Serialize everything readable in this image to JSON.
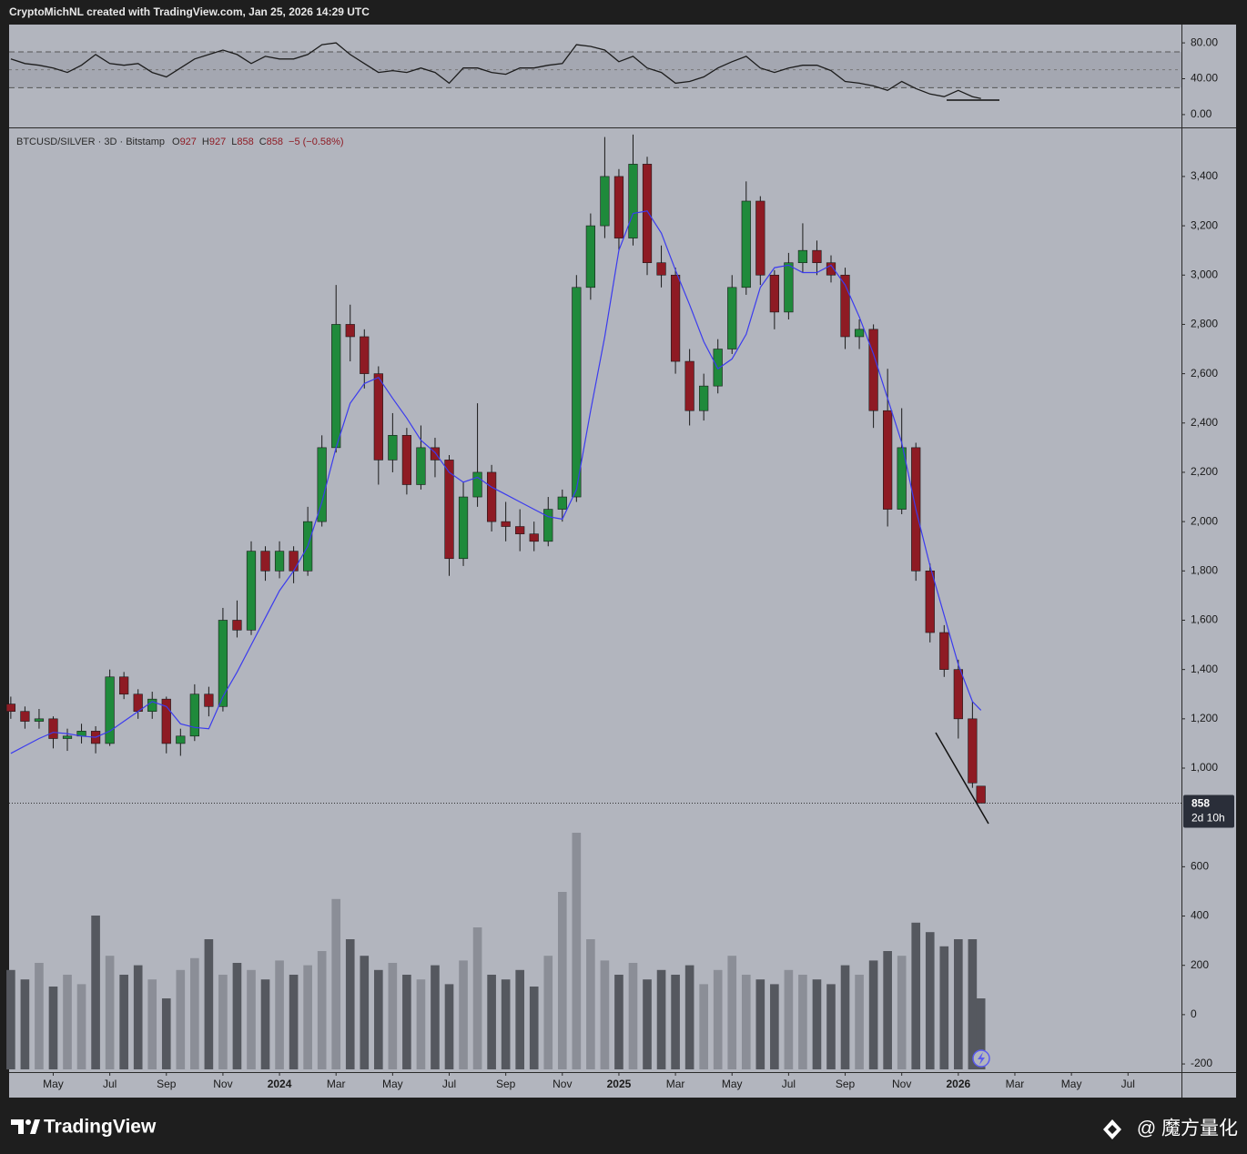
{
  "header": {
    "attribution": "CryptoMichNL created with TradingView.com, Jan 25, 2026 14:29 UTC"
  },
  "footer": {
    "brand": "TradingView",
    "watermark": "@ 魔方量化"
  },
  "chart_data": [
    {
      "type": "line",
      "x": [
        2.5,
        3,
        3.5,
        4,
        4.5,
        5,
        5.5,
        6,
        6.5,
        7,
        7.5,
        8,
        8.5,
        9,
        9.5,
        10,
        10.5,
        11,
        11.5,
        12,
        12.5,
        13,
        13.5,
        14,
        14.5,
        15,
        15.5,
        16,
        16.5,
        17,
        17.5,
        18,
        18.5,
        19,
        19.5,
        20,
        20.5,
        21,
        21.5,
        22,
        22.5,
        23,
        23.5,
        24,
        24.5,
        25,
        25.5,
        26,
        26.5,
        27,
        27.5,
        28,
        28.5,
        29,
        29.5,
        30,
        30.5,
        31,
        31.5,
        32,
        32.5,
        33,
        33.5,
        34,
        34.5,
        35,
        35.5,
        36,
        36.5,
        36.8
      ],
      "values": [
        62,
        57,
        55,
        52,
        47,
        55,
        67,
        57,
        55,
        57,
        47,
        42,
        52,
        62,
        67,
        72,
        67,
        57,
        65,
        62,
        62,
        67,
        78,
        80,
        67,
        57,
        47,
        49,
        47,
        52,
        47,
        35,
        52,
        52,
        47,
        45,
        52,
        52,
        55,
        57,
        78,
        76,
        72,
        59,
        65,
        52,
        47,
        35,
        37,
        42,
        52,
        59,
        65,
        52,
        47,
        52,
        55,
        55,
        49,
        37,
        35,
        32,
        27,
        37,
        29,
        23,
        20,
        27,
        20,
        18
      ],
      "color": "#1c1c1c",
      "xlim": [
        2.44,
        43.89
      ],
      "ylim": [
        -14.3,
        100.4
      ],
      "yticks": [
        {
          "value": 80,
          "label": "80.00"
        },
        {
          "value": 40,
          "label": "40.00"
        },
        {
          "value": 0,
          "label": "0.00"
        }
      ],
      "band": [
        30,
        70
      ],
      "midline": 50,
      "band_color": "#a4a7b1",
      "grid": false
    },
    {
      "type": "candlestick",
      "legend": {
        "symbol": "BTCUSD/SILVER · 3D · Bitstamp",
        "ohlc_letters": [
          "O",
          "H",
          "L",
          "C"
        ],
        "change": "−5 (−0.58%)"
      },
      "x": [
        2.5,
        3,
        3.5,
        4,
        4.5,
        5,
        5.5,
        6,
        6.5,
        7,
        7.5,
        8,
        8.5,
        9,
        9.5,
        10,
        10.5,
        11,
        11.5,
        12,
        12.5,
        13,
        13.5,
        14,
        14.5,
        15,
        15.5,
        16,
        16.5,
        17,
        17.5,
        18,
        18.5,
        19,
        19.5,
        20,
        20.5,
        21,
        21.5,
        22,
        22.5,
        23,
        23.5,
        24,
        24.5,
        25,
        25.5,
        26,
        26.5,
        27,
        27.5,
        28,
        28.5,
        29,
        29.5,
        30,
        30.5,
        31,
        31.5,
        32,
        32.5,
        33,
        33.5,
        34,
        34.5,
        35,
        35.5,
        36,
        36.5,
        36.8
      ],
      "open": [
        1260,
        1230,
        1190,
        1200,
        1120,
        1130,
        1150,
        1100,
        1370,
        1300,
        1230,
        1280,
        1100,
        1130,
        1300,
        1250,
        1600,
        1560,
        1880,
        1800,
        1880,
        1800,
        2000,
        2300,
        2800,
        2750,
        2600,
        2250,
        2350,
        2150,
        2300,
        2250,
        1850,
        2100,
        2200,
        2000,
        1980,
        1950,
        1920,
        2050,
        2100,
        2950,
        3200,
        3400,
        3150,
        3450,
        3050,
        3000,
        2650,
        2450,
        2550,
        2700,
        2950,
        3300,
        3000,
        2850,
        3050,
        3100,
        3050,
        3000,
        2750,
        2780,
        2450,
        2050,
        2300,
        1800,
        1550,
        1400,
        1200,
        927
      ],
      "high": [
        1290,
        1250,
        1240,
        1210,
        1160,
        1180,
        1170,
        1400,
        1390,
        1320,
        1310,
        1290,
        1160,
        1340,
        1330,
        1650,
        1680,
        1920,
        1900,
        1920,
        1900,
        2060,
        2350,
        2960,
        2880,
        2780,
        2630,
        2440,
        2380,
        2390,
        2340,
        2270,
        2160,
        2480,
        2230,
        2080,
        2050,
        2000,
        2100,
        2130,
        3000,
        3250,
        3560,
        3430,
        3570,
        3480,
        3120,
        3030,
        2700,
        2600,
        2740,
        3000,
        3380,
        3320,
        3020,
        3090,
        3210,
        3140,
        3080,
        3030,
        2820,
        2800,
        2620,
        2460,
        2320,
        1830,
        1580,
        1440,
        1270,
        927
      ],
      "low": [
        1200,
        1160,
        1160,
        1080,
        1070,
        1100,
        1060,
        1090,
        1280,
        1200,
        1200,
        1060,
        1050,
        1110,
        1210,
        1230,
        1530,
        1540,
        1760,
        1770,
        1750,
        1780,
        1980,
        2280,
        2650,
        2540,
        2150,
        2200,
        2110,
        2130,
        2180,
        1780,
        1820,
        2060,
        1960,
        1920,
        1880,
        1880,
        1900,
        2000,
        2080,
        2900,
        3150,
        3100,
        3120,
        3000,
        2950,
        2600,
        2390,
        2410,
        2520,
        2680,
        2920,
        2960,
        2780,
        2820,
        3010,
        3000,
        2970,
        2700,
        2700,
        2380,
        1980,
        2030,
        1760,
        1510,
        1370,
        1120,
        920,
        858
      ],
      "close": [
        1230,
        1190,
        1200,
        1120,
        1130,
        1150,
        1100,
        1370,
        1300,
        1230,
        1280,
        1100,
        1130,
        1300,
        1250,
        1600,
        1560,
        1880,
        1800,
        1880,
        1800,
        2000,
        2300,
        2800,
        2750,
        2600,
        2250,
        2350,
        2150,
        2300,
        2250,
        1850,
        2100,
        2200,
        2000,
        1980,
        1950,
        1920,
        2050,
        2100,
        2950,
        3200,
        3400,
        3150,
        3450,
        3050,
        3000,
        2650,
        2450,
        2550,
        2700,
        2950,
        3300,
        3000,
        2850,
        3050,
        3100,
        3050,
        3000,
        2750,
        2780,
        2450,
        2050,
        2300,
        1800,
        1550,
        1400,
        1200,
        940,
        858
      ],
      "up_color": "#1f8a3b",
      "down_color": "#8e1b24",
      "wick_color": "#1a1a1a",
      "ma": {
        "color": "#3b3bee",
        "values": [
          1060,
          1090,
          1120,
          1145,
          1140,
          1130,
          1125,
          1150,
          1190,
          1230,
          1270,
          1250,
          1180,
          1165,
          1160,
          1290,
          1390,
          1500,
          1610,
          1720,
          1800,
          1900,
          2080,
          2300,
          2480,
          2560,
          2585,
          2500,
          2420,
          2330,
          2280,
          2200,
          2160,
          2180,
          2140,
          2110,
          2080,
          2050,
          2020,
          2010,
          2130,
          2450,
          2750,
          3100,
          3250,
          3260,
          3170,
          3020,
          2880,
          2730,
          2620,
          2660,
          2760,
          2950,
          3030,
          3040,
          3010,
          3010,
          3040,
          2960,
          2830,
          2680,
          2500,
          2320,
          2050,
          1820,
          1620,
          1420,
          1270,
          1235
        ]
      },
      "volume": {
        "up_color": "#8b8e97",
        "down_color": "#55585f",
        "values": [
          42,
          38,
          45,
          35,
          40,
          36,
          65,
          48,
          40,
          44,
          38,
          30,
          42,
          47,
          55,
          40,
          45,
          42,
          38,
          46,
          40,
          44,
          50,
          72,
          55,
          48,
          42,
          45,
          40,
          38,
          44,
          36,
          46,
          60,
          40,
          38,
          42,
          35,
          48,
          75,
          100,
          55,
          46,
          40,
          45,
          38,
          42,
          40,
          44,
          36,
          42,
          48,
          40,
          38,
          36,
          42,
          40,
          38,
          36,
          44,
          40,
          46,
          50,
          48,
          62,
          58,
          52,
          55,
          55,
          30
        ]
      },
      "xlim": [
        2.44,
        43.89
      ],
      "ylim": [
        -233,
        3599
      ],
      "yticks": [
        -200,
        0,
        200,
        400,
        600,
        {
          "value": 1000,
          "label": "1,000"
        },
        {
          "value": 1200,
          "label": "1,200"
        },
        {
          "value": 1400,
          "label": "1,400"
        },
        {
          "value": 1600,
          "label": "1,600"
        },
        {
          "value": 1800,
          "label": "1,800"
        },
        {
          "value": 2000,
          "label": "2,000"
        },
        {
          "value": 2200,
          "label": "2,200"
        },
        {
          "value": 2400,
          "label": "2,400"
        },
        {
          "value": 2600,
          "label": "2,600"
        },
        {
          "value": 2800,
          "label": "2,800"
        },
        {
          "value": 3000,
          "label": "3,000"
        },
        {
          "value": 3200,
          "label": "3,200"
        },
        {
          "value": 3400,
          "label": "3,400"
        }
      ],
      "xticks": [
        {
          "value": 4,
          "label": "May"
        },
        {
          "value": 6,
          "label": "Jul"
        },
        {
          "value": 8,
          "label": "Sep"
        },
        {
          "value": 10,
          "label": "Nov"
        },
        {
          "value": 12,
          "label": "2024"
        },
        {
          "value": 14,
          "label": "Mar"
        },
        {
          "value": 16,
          "label": "May"
        },
        {
          "value": 18,
          "label": "Jul"
        },
        {
          "value": 20,
          "label": "Sep"
        },
        {
          "value": 22,
          "label": "Nov"
        },
        {
          "value": 24,
          "label": "2025"
        },
        {
          "value": 26,
          "label": "Mar"
        },
        {
          "value": 28,
          "label": "May"
        },
        {
          "value": 30,
          "label": "Jul"
        },
        {
          "value": 32,
          "label": "Sep"
        },
        {
          "value": 34,
          "label": "Nov"
        },
        {
          "value": 36,
          "label": "2026"
        },
        {
          "value": 38,
          "label": "Mar"
        },
        {
          "value": 40,
          "label": "May"
        },
        {
          "value": 42,
          "label": "Jul"
        }
      ],
      "countdown": "2d 10h",
      "grid": false
    }
  ]
}
